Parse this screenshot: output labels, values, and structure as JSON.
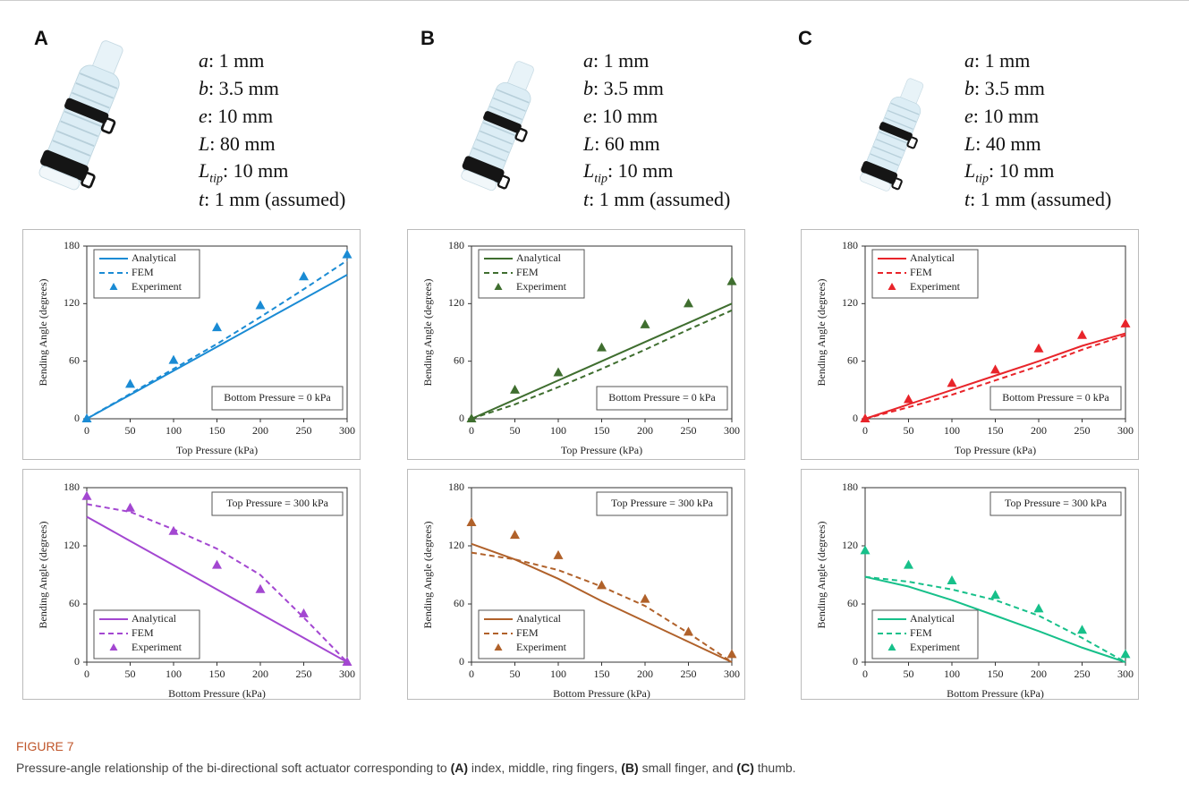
{
  "panels": [
    {
      "label": "A",
      "params": [
        {
          "sym": "a",
          "text": ": 1 mm"
        },
        {
          "sym": "b",
          "text": ": 3.5 mm"
        },
        {
          "sym": "e",
          "text": ": 10 mm"
        },
        {
          "sym": "L",
          "text": ": 80 mm"
        },
        {
          "sym": "L",
          "sub": "tip",
          "text": ": 10 mm"
        },
        {
          "sym": "t",
          "text": ": 1 mm (assumed)"
        }
      ]
    },
    {
      "label": "B",
      "params": [
        {
          "sym": "a",
          "text": ": 1 mm"
        },
        {
          "sym": "b",
          "text": ": 3.5 mm"
        },
        {
          "sym": "e",
          "text": ": 10 mm"
        },
        {
          "sym": "L",
          "text": ": 60 mm"
        },
        {
          "sym": "L",
          "sub": "tip",
          "text": ": 10 mm"
        },
        {
          "sym": "t",
          "text": ": 1 mm (assumed)"
        }
      ]
    },
    {
      "label": "C",
      "params": [
        {
          "sym": "a",
          "text": ": 1 mm"
        },
        {
          "sym": "b",
          "text": ": 3.5 mm"
        },
        {
          "sym": "e",
          "text": ": 10 mm"
        },
        {
          "sym": "L",
          "text": ": 40 mm"
        },
        {
          "sym": "L",
          "sub": "tip",
          "text": ": 10 mm"
        },
        {
          "sym": "t",
          "text": ": 1 mm (assumed)"
        }
      ]
    }
  ],
  "chart_data": [
    {
      "type": "line",
      "xlabel": "Top Pressure (kPa)",
      "ylabel": "Bending Angle (degrees)",
      "annotation": "Bottom Pressure = 0 kPa",
      "x": [
        0,
        50,
        100,
        150,
        200,
        250,
        300
      ],
      "xlim": [
        0,
        300
      ],
      "ylim": [
        0,
        180
      ],
      "xticks": [
        0,
        50,
        100,
        150,
        200,
        250,
        300
      ],
      "yticks": [
        0,
        60,
        120,
        180
      ],
      "legend": "upper left",
      "series": [
        {
          "name": "Analytical",
          "color": "#1a8bd4",
          "style": "solid",
          "values": [
            0,
            25,
            50,
            75,
            100,
            125,
            150
          ]
        },
        {
          "name": "FEM",
          "color": "#1a8bd4",
          "style": "dashed",
          "values": [
            0,
            26,
            52,
            78,
            106,
            135,
            165
          ]
        },
        {
          "name": "Experiment",
          "color": "#1a8bd4",
          "style": "markers",
          "values": [
            0,
            36,
            61,
            95,
            118,
            148,
            171
          ]
        }
      ]
    },
    {
      "type": "line",
      "xlabel": "Bottom Pressure (kPa)",
      "ylabel": "Bending Angle (degrees)",
      "annotation": "Top Pressure = 300 kPa",
      "x": [
        0,
        50,
        100,
        150,
        200,
        250,
        300
      ],
      "xlim": [
        0,
        300
      ],
      "ylim": [
        0,
        180
      ],
      "xticks": [
        0,
        50,
        100,
        150,
        200,
        250,
        300
      ],
      "yticks": [
        0,
        60,
        120,
        180
      ],
      "legend": "lower left",
      "series": [
        {
          "name": "Analytical",
          "color": "#a347d1",
          "style": "solid",
          "values": [
            150,
            125,
            100,
            75,
            50,
            25,
            0
          ]
        },
        {
          "name": "FEM",
          "color": "#a347d1",
          "style": "dashed",
          "values": [
            163,
            155,
            137,
            117,
            90,
            46,
            0
          ]
        },
        {
          "name": "Experiment",
          "color": "#a347d1",
          "style": "markers",
          "values": [
            171,
            159,
            135,
            100,
            75,
            50,
            0
          ]
        }
      ]
    },
    {
      "type": "line",
      "xlabel": "Top Pressure (kPa)",
      "ylabel": "Bending Angle (degrees)",
      "annotation": "Bottom Pressure = 0 kPa",
      "x": [
        0,
        50,
        100,
        150,
        200,
        250,
        300
      ],
      "xlim": [
        0,
        300
      ],
      "ylim": [
        0,
        180
      ],
      "xticks": [
        0,
        50,
        100,
        150,
        200,
        250,
        300
      ],
      "yticks": [
        0,
        60,
        120,
        180
      ],
      "legend": "upper left",
      "series": [
        {
          "name": "Analytical",
          "color": "#3f6e2f",
          "style": "solid",
          "values": [
            0,
            20,
            40,
            60,
            80,
            100,
            120
          ]
        },
        {
          "name": "FEM",
          "color": "#3f6e2f",
          "style": "dashed",
          "values": [
            0,
            15,
            33,
            52,
            72,
            93,
            113
          ]
        },
        {
          "name": "Experiment",
          "color": "#3f6e2f",
          "style": "markers",
          "values": [
            0,
            30,
            48,
            74,
            98,
            120,
            143
          ]
        }
      ]
    },
    {
      "type": "line",
      "xlabel": "Bottom Pressure (kPa)",
      "ylabel": "Bending Angle (degrees)",
      "annotation": "Top Pressure = 300 kPa",
      "x": [
        0,
        50,
        100,
        150,
        200,
        250,
        300
      ],
      "xlim": [
        0,
        300
      ],
      "ylim": [
        0,
        180
      ],
      "xticks": [
        0,
        50,
        100,
        150,
        200,
        250,
        300
      ],
      "yticks": [
        0,
        60,
        120,
        180
      ],
      "legend": "lower left",
      "series": [
        {
          "name": "Analytical",
          "color": "#b0612a",
          "style": "solid",
          "values": [
            122,
            106,
            86,
            63,
            42,
            21,
            0
          ]
        },
        {
          "name": "FEM",
          "color": "#b0612a",
          "style": "dashed",
          "values": [
            113,
            106,
            95,
            78,
            58,
            30,
            0
          ]
        },
        {
          "name": "Experiment",
          "color": "#b0612a",
          "style": "markers",
          "values": [
            144,
            131,
            110,
            79,
            65,
            31,
            8
          ]
        }
      ]
    },
    {
      "type": "line",
      "xlabel": "Top Pressure (kPa)",
      "ylabel": "Bending Angle (degrees)",
      "annotation": "Bottom Pressure = 0 kPa",
      "x": [
        0,
        50,
        100,
        150,
        200,
        250,
        300
      ],
      "xlim": [
        0,
        300
      ],
      "ylim": [
        0,
        180
      ],
      "xticks": [
        0,
        50,
        100,
        150,
        200,
        250,
        300
      ],
      "yticks": [
        0,
        60,
        120,
        180
      ],
      "legend": "upper left",
      "series": [
        {
          "name": "Analytical",
          "color": "#e8242a",
          "style": "solid",
          "values": [
            0,
            15,
            30,
            45,
            60,
            76,
            89
          ]
        },
        {
          "name": "FEM",
          "color": "#e8242a",
          "style": "dashed",
          "values": [
            0,
            12,
            25,
            40,
            55,
            72,
            87
          ]
        },
        {
          "name": "Experiment",
          "color": "#e8242a",
          "style": "markers",
          "values": [
            0,
            20,
            37,
            51,
            73,
            87,
            99
          ]
        }
      ]
    },
    {
      "type": "line",
      "xlabel": "Bottom Pressure (kPa)",
      "ylabel": "Bending Angle (degrees)",
      "annotation": "Top Pressure = 300 kPa",
      "x": [
        0,
        50,
        100,
        150,
        200,
        250,
        300
      ],
      "xlim": [
        0,
        300
      ],
      "ylim": [
        0,
        180
      ],
      "xticks": [
        0,
        50,
        100,
        150,
        200,
        250,
        300
      ],
      "yticks": [
        0,
        60,
        120,
        180
      ],
      "legend": "lower left",
      "series": [
        {
          "name": "Analytical",
          "color": "#17c08a",
          "style": "solid",
          "values": [
            88,
            78,
            64,
            48,
            32,
            15,
            0
          ]
        },
        {
          "name": "FEM",
          "color": "#17c08a",
          "style": "dashed",
          "values": [
            88,
            83,
            75,
            64,
            48,
            25,
            0
          ]
        },
        {
          "name": "Experiment",
          "color": "#17c08a",
          "style": "markers",
          "values": [
            115,
            100,
            84,
            69,
            55,
            33,
            8
          ]
        }
      ]
    }
  ],
  "caption": {
    "label": "FIGURE 7",
    "parts": [
      "Pressure-angle relationship of the bi-directional soft actuator corresponding to ",
      "(A)",
      " index, middle, ring fingers, ",
      "(B)",
      " small finger, and ",
      "(C)",
      " thumb."
    ]
  }
}
